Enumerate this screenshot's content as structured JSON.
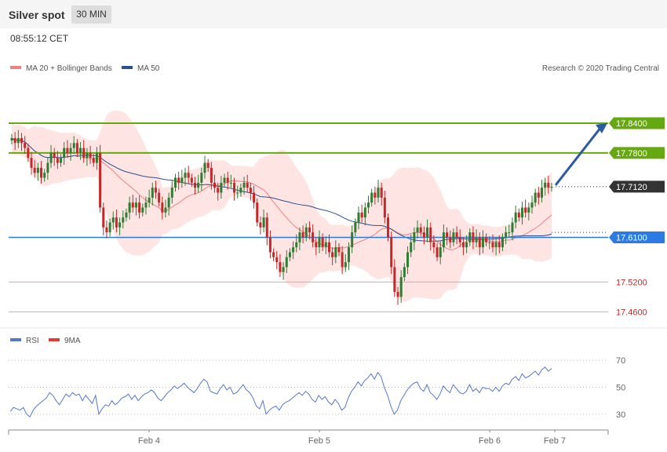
{
  "header": {
    "title": "Silver spot",
    "timeframe": "30 MIN"
  },
  "timestamp": "08:55:12 CET",
  "legend": {
    "ma20": "MA 20 + Bollinger Bands",
    "ma50": "MA 50",
    "credit": "Research © 2020 Trading Central"
  },
  "rsi_legend": {
    "rsi": "RSI",
    "ma9": "9MA"
  },
  "colors": {
    "up": "#2e7d32",
    "down": "#c62828",
    "band": "#ffe4e4",
    "ma20": "#f08080",
    "ma50": "#2c4f8f",
    "resistance": "#66a80f",
    "support_main": "#2c7be5",
    "support": "#e8a0a0",
    "arrow": "#2c5aa0",
    "rsi": "#5577cc"
  },
  "chart_data": [
    {
      "type": "candlestick",
      "x_ticks": [
        "Feb 4",
        "Feb 5",
        "Feb 6",
        "Feb 7"
      ],
      "ylim": [
        17.44,
        17.93
      ],
      "price_levels": [
        {
          "label": "17.8400",
          "value": 17.84,
          "kind": "resistance"
        },
        {
          "label": "17.7800",
          "value": 17.78,
          "kind": "resistance"
        },
        {
          "label": "17.7120",
          "value": 17.712,
          "kind": "last"
        },
        {
          "label": "17.6100",
          "value": 17.61,
          "kind": "support_main"
        },
        {
          "label": "17.5200",
          "value": 17.52,
          "kind": "support"
        },
        {
          "label": "17.4600",
          "value": 17.46,
          "kind": "support"
        }
      ],
      "close": [
        17.81,
        17.8,
        17.81,
        17.8,
        17.79,
        17.77,
        17.75,
        17.74,
        17.75,
        17.73,
        17.74,
        17.76,
        17.78,
        17.77,
        17.76,
        17.77,
        17.79,
        17.78,
        17.79,
        17.8,
        17.78,
        17.79,
        17.77,
        17.78,
        17.77,
        17.76,
        17.78,
        17.67,
        17.63,
        17.62,
        17.64,
        17.65,
        17.63,
        17.64,
        17.65,
        17.66,
        17.68,
        17.67,
        17.68,
        17.66,
        17.67,
        17.68,
        17.69,
        17.71,
        17.7,
        17.68,
        17.66,
        17.67,
        17.69,
        17.71,
        17.73,
        17.72,
        17.73,
        17.74,
        17.73,
        17.72,
        17.71,
        17.72,
        17.74,
        17.76,
        17.75,
        17.72,
        17.71,
        17.7,
        17.72,
        17.73,
        17.72,
        17.72,
        17.7,
        17.7,
        17.71,
        17.72,
        17.71,
        17.7,
        17.68,
        17.64,
        17.63,
        17.65,
        17.61,
        17.58,
        17.57,
        17.56,
        17.54,
        17.55,
        17.57,
        17.58,
        17.59,
        17.6,
        17.62,
        17.61,
        17.63,
        17.62,
        17.6,
        17.59,
        17.61,
        17.59,
        17.6,
        17.58,
        17.57,
        17.59,
        17.58,
        17.55,
        17.56,
        17.59,
        17.62,
        17.64,
        17.66,
        17.65,
        17.67,
        17.68,
        17.7,
        17.69,
        17.71,
        17.69,
        17.65,
        17.61,
        17.55,
        17.5,
        17.49,
        17.53,
        17.55,
        17.58,
        17.6,
        17.62,
        17.63,
        17.62,
        17.61,
        17.63,
        17.6,
        17.59,
        17.57,
        17.59,
        17.62,
        17.61,
        17.6,
        17.62,
        17.61,
        17.6,
        17.59,
        17.6,
        17.62,
        17.6,
        17.61,
        17.59,
        17.61,
        17.6,
        17.6,
        17.59,
        17.6,
        17.59,
        17.61,
        17.62,
        17.62,
        17.64,
        17.66,
        17.65,
        17.67,
        17.66,
        17.67,
        17.68,
        17.7,
        17.69,
        17.71,
        17.72,
        17.71,
        17.712
      ]
    },
    {
      "type": "line",
      "name": "RSI",
      "yticks": [
        70,
        50,
        30
      ],
      "ylim": [
        20,
        80
      ],
      "values": [
        32,
        35,
        34,
        33,
        35,
        30,
        28,
        33,
        36,
        38,
        40,
        42,
        46,
        44,
        40,
        37,
        41,
        45,
        43,
        46,
        44,
        45,
        40,
        44,
        41,
        38,
        44,
        30,
        34,
        37,
        36,
        40,
        37,
        39,
        42,
        43,
        45,
        41,
        44,
        40,
        43,
        45,
        46,
        48,
        46,
        42,
        40,
        43,
        46,
        48,
        51,
        49,
        51,
        53,
        50,
        48,
        46,
        49,
        53,
        56,
        54,
        47,
        46,
        45,
        49,
        52,
        48,
        50,
        45,
        46,
        49,
        52,
        48,
        46,
        42,
        36,
        34,
        40,
        30,
        33,
        35,
        36,
        33,
        37,
        39,
        40,
        42,
        44,
        46,
        44,
        47,
        45,
        41,
        39,
        44,
        41,
        43,
        39,
        37,
        41,
        38,
        33,
        35,
        42,
        47,
        50,
        54,
        51,
        55,
        57,
        60,
        56,
        61,
        58,
        50,
        44,
        36,
        30,
        33,
        40,
        44,
        48,
        51,
        53,
        54,
        49,
        47,
        52,
        46,
        44,
        41,
        45,
        51,
        48,
        46,
        52,
        49,
        46,
        45,
        47,
        52,
        47,
        49,
        46,
        50,
        49,
        49,
        47,
        50,
        47,
        51,
        53,
        52,
        56,
        58,
        55,
        60,
        57,
        58,
        60,
        62,
        59,
        63,
        65,
        62,
        64
      ]
    }
  ]
}
